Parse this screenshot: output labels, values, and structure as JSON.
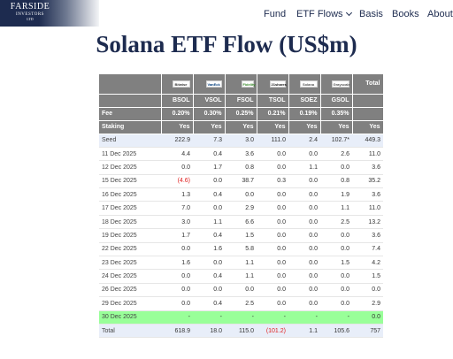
{
  "header": {
    "logo": {
      "main": "FARSIDE",
      "sub": "INVESTORS",
      "ltd": "LTD"
    },
    "nav": [
      {
        "label": "Fund"
      },
      {
        "label": "ETF Flows",
        "has_dropdown": true
      },
      {
        "label": "Basis"
      },
      {
        "label": "Books"
      },
      {
        "label": "About"
      }
    ]
  },
  "page": {
    "title": "Solana ETF Flow (US$m)"
  },
  "table": {
    "logos": [
      "Bitwise",
      "VanEck",
      "Fidelity",
      "21shares",
      "Solana",
      "Grayscale"
    ],
    "tickers": [
      "BSOL",
      "VSOL",
      "FSOL",
      "TSOL",
      "SOEZ",
      "GSOL",
      "Total"
    ],
    "fee_label": "Fee",
    "fees": [
      "0.20%",
      "0.30%",
      "0.25%",
      "0.21%",
      "0.19%",
      "0.35%",
      ""
    ],
    "staking_label": "Staking",
    "staking": [
      "Yes",
      "Yes",
      "Yes",
      "Yes",
      "Yes",
      "Yes",
      "Yes"
    ],
    "rows": [
      {
        "date": "Seed",
        "values": [
          "222.9",
          "7.3",
          "3.0",
          "111.0",
          "2.4",
          "102.7*",
          "449.3"
        ],
        "style": "seed"
      },
      {
        "date": "11 Dec 2025",
        "values": [
          "4.4",
          "0.4",
          "3.6",
          "0.0",
          "0.0",
          "2.6",
          "11.0"
        ]
      },
      {
        "date": "12 Dec 2025",
        "values": [
          "0.0",
          "1.7",
          "0.8",
          "0.0",
          "1.1",
          "0.0",
          "3.6"
        ]
      },
      {
        "date": "15 Dec 2025",
        "values": [
          "(4.6)",
          "0.0",
          "38.7",
          "0.3",
          "0.0",
          "0.8",
          "35.2"
        ]
      },
      {
        "date": "16 Dec 2025",
        "values": [
          "1.3",
          "0.4",
          "0.0",
          "0.0",
          "0.0",
          "1.9",
          "3.6"
        ]
      },
      {
        "date": "17 Dec 2025",
        "values": [
          "7.0",
          "0.0",
          "2.9",
          "0.0",
          "0.0",
          "1.1",
          "11.0"
        ]
      },
      {
        "date": "18 Dec 2025",
        "values": [
          "3.0",
          "1.1",
          "6.6",
          "0.0",
          "0.0",
          "2.5",
          "13.2"
        ]
      },
      {
        "date": "19 Dec 2025",
        "values": [
          "1.7",
          "0.4",
          "1.5",
          "0.0",
          "0.0",
          "0.0",
          "3.6"
        ]
      },
      {
        "date": "22 Dec 2025",
        "values": [
          "0.0",
          "1.6",
          "5.8",
          "0.0",
          "0.0",
          "0.0",
          "7.4"
        ]
      },
      {
        "date": "23 Dec 2025",
        "values": [
          "1.6",
          "0.0",
          "1.1",
          "0.0",
          "0.0",
          "1.5",
          "4.2"
        ]
      },
      {
        "date": "24 Dec 2025",
        "values": [
          "0.0",
          "0.4",
          "1.1",
          "0.0",
          "0.0",
          "0.0",
          "1.5"
        ]
      },
      {
        "date": "26 Dec 2025",
        "values": [
          "0.0",
          "0.0",
          "0.0",
          "0.0",
          "0.0",
          "0.0",
          "0.0"
        ]
      },
      {
        "date": "29 Dec 2025",
        "values": [
          "0.0",
          "0.4",
          "2.5",
          "0.0",
          "0.0",
          "0.0",
          "2.9"
        ]
      },
      {
        "date": "30 Dec 2025",
        "values": [
          "-",
          "-",
          "-",
          "-",
          "-",
          "-",
          "0.0"
        ],
        "style": "latest"
      },
      {
        "date": "Total",
        "values": [
          "618.9",
          "18.0",
          "115.0",
          "(101.2)",
          "1.1",
          "105.6",
          "757"
        ],
        "style": "total"
      }
    ]
  }
}
